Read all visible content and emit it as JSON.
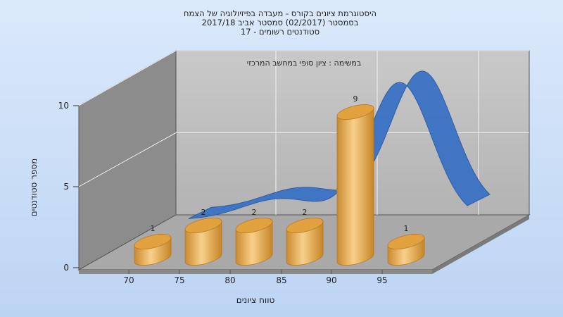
{
  "chart_data": {
    "type": "bar",
    "title_lines": [
      "היסטוגרמת ציונים בקורס - מעבדה בפיזיולוגיה של הצמח",
      "בסמסטר  (02/2017)  סמסטר אביב 2017/18",
      "סטודנטים רשומים - 17"
    ],
    "annotation": "במשימה : ציון סופי במחשב המרכזי",
    "xlabel": "טווח ציונים",
    "ylabel": "מספר סטודנטים",
    "x_ticks": [
      "70",
      "75",
      "80",
      "85",
      "90",
      "95"
    ],
    "y_ticks": [
      "0",
      "5",
      "10"
    ],
    "ylim": [
      0,
      10
    ],
    "bars": [
      {
        "category": "70",
        "value": 1,
        "label": "1"
      },
      {
        "category": "75",
        "value": 2,
        "label": "2"
      },
      {
        "category": "80",
        "value": 2,
        "label": "2"
      },
      {
        "category": "85",
        "value": 2,
        "label": "2"
      },
      {
        "category": "90",
        "value": 9,
        "label": "9"
      },
      {
        "category": "95",
        "value": 1,
        "label": "1"
      }
    ],
    "curve_type": "normal-distribution-ribbon",
    "colors": {
      "bar_light": "#f6c97a",
      "bar_mid": "#e2a13f",
      "bar_dark": "#b87720",
      "curve": "#3a72c4",
      "curve_dark": "#2a5aa2",
      "wall_back": "#bdbdbd",
      "wall_side": "#8a8a8a",
      "floor": "#aaaaaa"
    }
  }
}
